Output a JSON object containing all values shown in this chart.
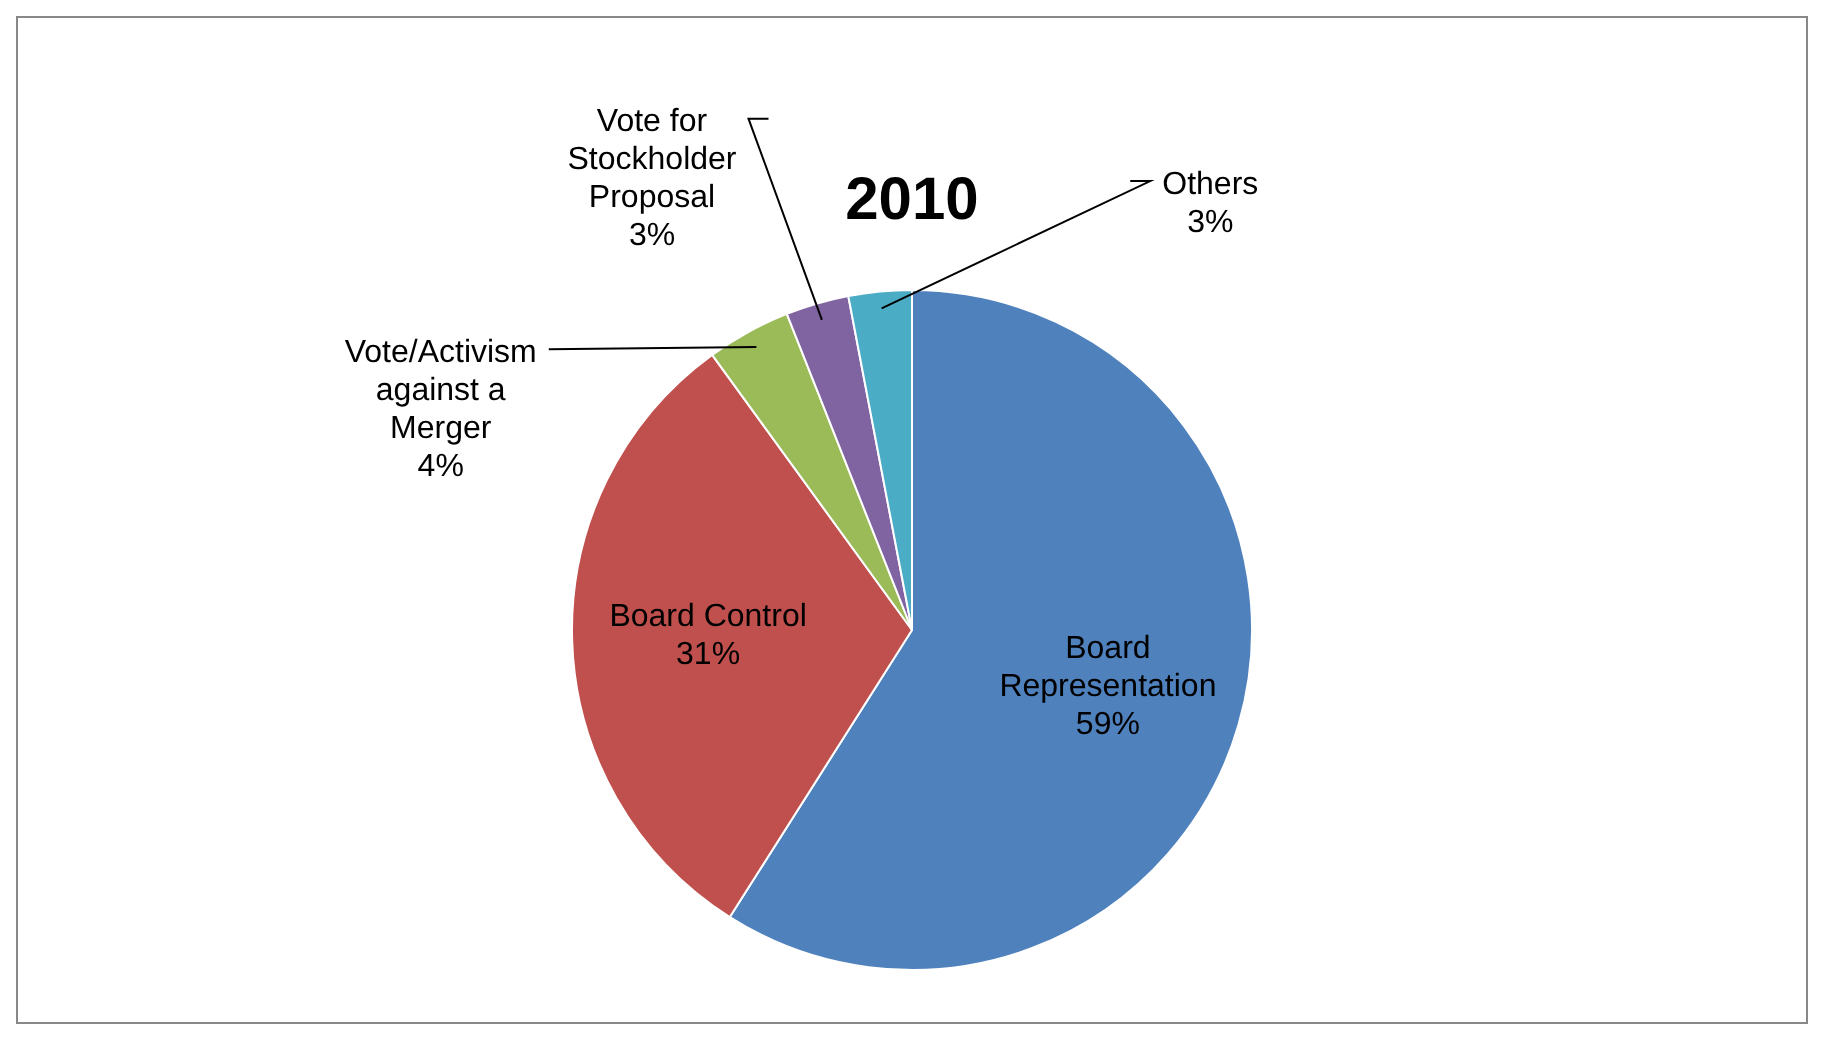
{
  "chart_data": {
    "type": "pie",
    "title": "2010",
    "categories": [
      "Board Representation",
      "Board Control",
      "Vote/Activism against a Merger",
      "Vote for Stockholder Proposal",
      "Others"
    ],
    "values": [
      59,
      31,
      4,
      3,
      3
    ],
    "value_labels": [
      "59%",
      "31%",
      "4%",
      "3%",
      "3%"
    ],
    "colors": [
      "#4f81bd",
      "#c0504d",
      "#9bbb59",
      "#8064a2",
      "#4bacc6"
    ],
    "legend": false
  }
}
